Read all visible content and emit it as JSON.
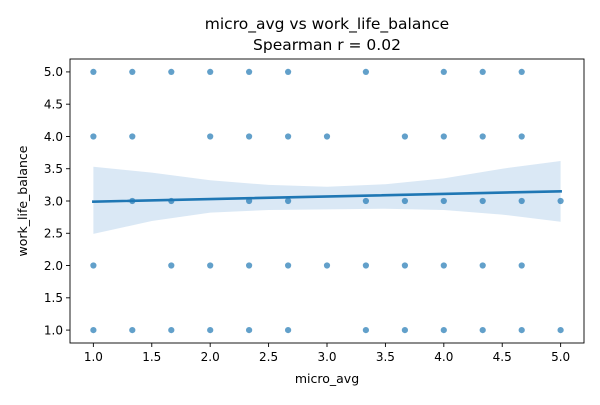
{
  "chart_data": {
    "type": "scatter",
    "title": "micro_avg vs work_life_balance",
    "subtitle": "Spearman r = 0.02",
    "xlabel": "micro_avg",
    "ylabel": "work_life_balance",
    "xlim": [
      0.8,
      5.2
    ],
    "ylim": [
      0.8,
      5.2
    ],
    "xticks": [
      "1.0",
      "1.5",
      "2.0",
      "2.5",
      "3.0",
      "3.5",
      "4.0",
      "4.5",
      "5.0"
    ],
    "yticks": [
      "1.0",
      "1.5",
      "2.0",
      "2.5",
      "3.0",
      "3.5",
      "4.0",
      "4.5",
      "5.0"
    ],
    "grid": false,
    "legend": "none",
    "colors": {
      "points": "#1f77b4",
      "line": "#1f77b4",
      "band": "#c6dbef"
    },
    "points": [
      [
        1.0,
        5.0
      ],
      [
        1.333,
        5.0
      ],
      [
        1.667,
        5.0
      ],
      [
        2.0,
        5.0
      ],
      [
        2.333,
        5.0
      ],
      [
        2.667,
        5.0
      ],
      [
        3.333,
        5.0
      ],
      [
        4.0,
        5.0
      ],
      [
        4.333,
        5.0
      ],
      [
        4.667,
        5.0
      ],
      [
        1.0,
        4.0
      ],
      [
        1.333,
        4.0
      ],
      [
        2.0,
        4.0
      ],
      [
        2.333,
        4.0
      ],
      [
        2.667,
        4.0
      ],
      [
        3.0,
        4.0
      ],
      [
        3.667,
        4.0
      ],
      [
        4.0,
        4.0
      ],
      [
        4.333,
        4.0
      ],
      [
        4.667,
        4.0
      ],
      [
        1.333,
        3.0
      ],
      [
        1.667,
        3.0
      ],
      [
        2.333,
        3.0
      ],
      [
        2.667,
        3.0
      ],
      [
        3.333,
        3.0
      ],
      [
        3.667,
        3.0
      ],
      [
        4.0,
        3.0
      ],
      [
        4.333,
        3.0
      ],
      [
        4.667,
        3.0
      ],
      [
        5.0,
        3.0
      ],
      [
        1.0,
        2.0
      ],
      [
        1.667,
        2.0
      ],
      [
        2.0,
        2.0
      ],
      [
        2.333,
        2.0
      ],
      [
        2.667,
        2.0
      ],
      [
        3.0,
        2.0
      ],
      [
        3.333,
        2.0
      ],
      [
        3.667,
        2.0
      ],
      [
        4.0,
        2.0
      ],
      [
        4.333,
        2.0
      ],
      [
        4.667,
        2.0
      ],
      [
        1.0,
        1.0
      ],
      [
        1.333,
        1.0
      ],
      [
        1.667,
        1.0
      ],
      [
        2.0,
        1.0
      ],
      [
        2.333,
        1.0
      ],
      [
        2.667,
        1.0
      ],
      [
        3.333,
        1.0
      ],
      [
        3.667,
        1.0
      ],
      [
        4.0,
        1.0
      ],
      [
        4.333,
        1.0
      ],
      [
        4.667,
        1.0
      ],
      [
        5.0,
        1.0
      ]
    ],
    "regression": {
      "x": [
        1.0,
        5.0
      ],
      "y": [
        2.99,
        3.15
      ]
    },
    "confidence_band": {
      "x": [
        1.0,
        1.5,
        2.0,
        2.5,
        3.0,
        3.5,
        4.0,
        4.5,
        5.0
      ],
      "lower": [
        2.49,
        2.69,
        2.82,
        2.86,
        2.87,
        2.88,
        2.86,
        2.79,
        2.68
      ],
      "upper": [
        3.53,
        3.44,
        3.32,
        3.25,
        3.22,
        3.26,
        3.35,
        3.5,
        3.62
      ]
    }
  }
}
